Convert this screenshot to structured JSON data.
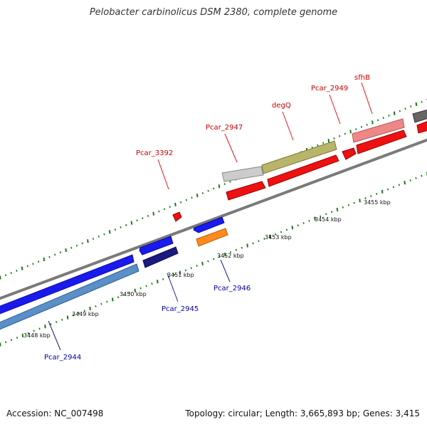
{
  "title": "Pelobacter carbinolicus DSM 2380, complete genome",
  "footer": {
    "accession": "Accession: NC_007498",
    "summary": "Topology: circular; Length: 3,665,893 bp; Genes: 3,415"
  },
  "scale_labels": [
    {
      "text": "3448 kbp",
      "x": 3448
    },
    {
      "text": "3449 kbp",
      "x": 3449
    },
    {
      "text": "3450 kbp",
      "x": 3450
    },
    {
      "text": "3451 kbp",
      "x": 3451
    },
    {
      "text": "3452 kbp",
      "x": 3452
    },
    {
      "text": "3453 kbp",
      "x": 3453
    },
    {
      "text": "3454 kbp",
      "x": 3454
    },
    {
      "text": "3455 kbp",
      "x": 3455
    }
  ],
  "genes": [
    {
      "name": "Pcar_2944",
      "strand": "reverse",
      "color": "#5a8fc8"
    },
    {
      "name": "Pcar_2945",
      "strand": "reverse",
      "color": "#1a1a80"
    },
    {
      "name": "Pcar_2946",
      "strand": "reverse",
      "color": "#ff8a1e"
    },
    {
      "name": "Pcar_3392",
      "strand": "forward",
      "color": "#ee1111"
    },
    {
      "name": "Pcar_2947",
      "strand": "forward",
      "color": "#bbbbbb"
    },
    {
      "name": "degQ",
      "strand": "forward",
      "color": "#b8b46a"
    },
    {
      "name": "Pcar_2949",
      "strand": "forward",
      "color": "#ee1111"
    },
    {
      "name": "sfhB",
      "strand": "forward",
      "color": "#ee8888"
    }
  ]
}
